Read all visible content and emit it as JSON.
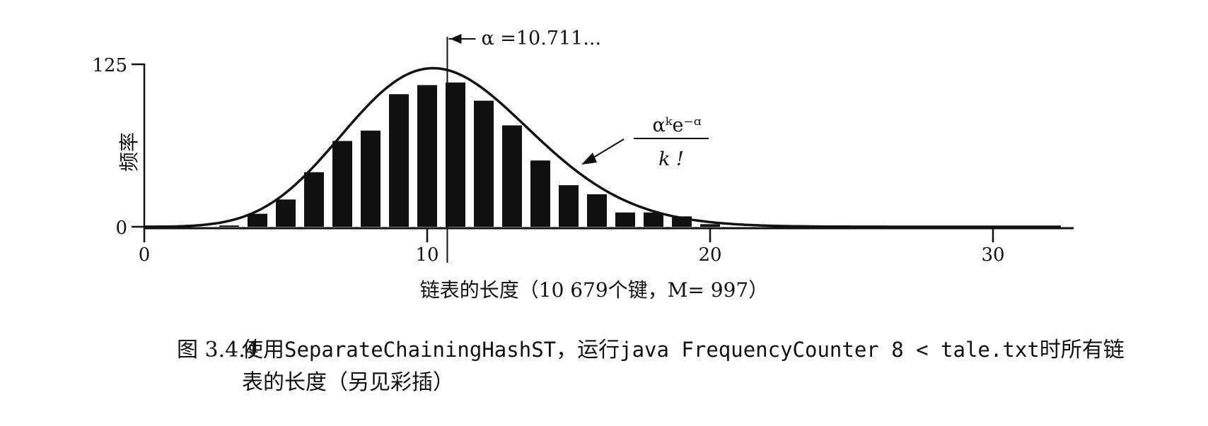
{
  "chart_data": {
    "type": "bar",
    "x": [
      3,
      4,
      5,
      6,
      7,
      8,
      9,
      10,
      11,
      12,
      13,
      14,
      15,
      16,
      17,
      18,
      19,
      20
    ],
    "values": [
      1,
      10,
      21,
      42,
      66,
      74,
      102,
      109,
      111,
      97,
      78,
      51,
      32,
      25,
      11,
      11,
      8,
      2
    ],
    "curve": {
      "type": "poisson",
      "label_numerator": "αᵏe⁻ᵅ",
      "label_denominator": "k !",
      "alpha": 10.711,
      "total_keys": 10679
    },
    "xlim": [
      0,
      33
    ],
    "ylim": [
      0,
      125
    ],
    "x_ticks": [
      0,
      10,
      20,
      30
    ],
    "y_ticks": [
      0,
      125
    ],
    "x_tick_labels": [
      "0",
      "10",
      "20",
      "30"
    ],
    "y_tick_labels": [
      "0",
      "125"
    ],
    "xlabel": "链表的长度（10 679个键，M= 997）",
    "ylabel": "频率",
    "alpha_marker_label": "α =10.711...",
    "grid": false
  },
  "caption": {
    "figure_number": "图 3.4.4",
    "text_1": "使用",
    "code_1": "SeparateChainingHashST",
    "text_2": "，运行",
    "code_2": "java FrequencyCounter 8 < tale.txt",
    "text_3": "时所有链",
    "line2": "表的长度（另见彩插）"
  }
}
